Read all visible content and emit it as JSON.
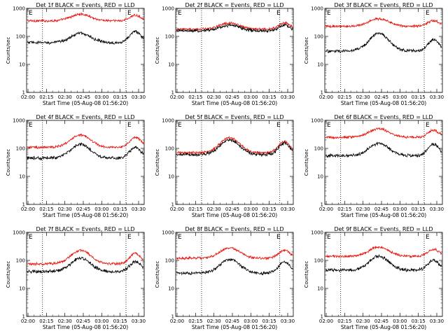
{
  "colors": {
    "events": "#000000",
    "lld": "#e8120c",
    "axis": "#000000",
    "background": "#ffffff"
  },
  "chart_data": [
    {
      "type": "line",
      "title": "Det 1f BLACK = Events, RED = LLD",
      "xlabel": "Start Time (05-Aug-08 01:56:20)",
      "ylabel": "Counts/sec",
      "yscale": "log",
      "ylim": [
        1,
        1000
      ],
      "y_ticks": [
        "1",
        "10",
        "100",
        "1000"
      ],
      "x_ticks": [
        "02:00",
        "02:15",
        "02:30",
        "02:45",
        "03:00",
        "03:15",
        "03:30"
      ],
      "markers": [
        "E",
        "E"
      ],
      "profile": {
        "events": {
          "base": 60,
          "peak1": 130,
          "peak2": 150
        },
        "lld": {
          "base": 360,
          "peak1": 620,
          "peak2": 560
        }
      }
    },
    {
      "type": "line",
      "title": "Det 2f BLACK = Events, RED = LLD",
      "xlabel": "Start Time (05-Aug-08 01:56:20)",
      "ylabel": "Counts/sec",
      "yscale": "log",
      "ylim": [
        1,
        1000
      ],
      "y_ticks": [
        "1",
        "10",
        "100",
        "1000"
      ],
      "x_ticks": [
        "02:00",
        "02:15",
        "02:30",
        "02:45",
        "03:00",
        "03:15",
        "03:30"
      ],
      "markers": [
        "E",
        "E"
      ],
      "profile": {
        "events": {
          "base": 160,
          "peak1": 250,
          "peak2": 250
        },
        "lld": {
          "base": 180,
          "peak1": 300,
          "peak2": 300
        }
      }
    },
    {
      "type": "line",
      "title": "Det 3f BLACK = Events, RED = LLD",
      "xlabel": "Start Time (05-Aug-08 01:56:20)",
      "ylabel": "Counts/sec",
      "yscale": "log",
      "ylim": [
        1,
        1000
      ],
      "y_ticks": [
        "1",
        "10",
        "100",
        "1000"
      ],
      "x_ticks": [
        "02:00",
        "02:15",
        "02:30",
        "02:45",
        "03:00",
        "03:15",
        "03:30"
      ],
      "markers": [
        "E",
        "E"
      ],
      "profile": {
        "events": {
          "base": 30,
          "peak1": 130,
          "peak2": 75
        },
        "lld": {
          "base": 230,
          "peak1": 430,
          "peak2": 360
        }
      }
    },
    {
      "type": "line",
      "title": "Det 4f BLACK = Events, RED = LLD",
      "xlabel": "Start Time (05-Aug-08 01:56:20)",
      "ylabel": "Counts/sec",
      "yscale": "log",
      "ylim": [
        1,
        1000
      ],
      "y_ticks": [
        "1",
        "10",
        "100",
        "1000"
      ],
      "x_ticks": [
        "02:00",
        "02:15",
        "02:30",
        "02:45",
        "03:00",
        "03:15",
        "03:30"
      ],
      "markers": [
        "E",
        "E"
      ],
      "profile": {
        "events": {
          "base": 45,
          "peak1": 140,
          "peak2": 110
        },
        "lld": {
          "base": 110,
          "peak1": 300,
          "peak2": 250
        }
      }
    },
    {
      "type": "line",
      "title": "Det 5f BLACK = Events, RED = LLD",
      "xlabel": "Start Time (05-Aug-08 01:56:20)",
      "ylabel": "Counts/sec",
      "yscale": "log",
      "ylim": [
        1,
        1000
      ],
      "y_ticks": [
        "1",
        "10",
        "100",
        "1000"
      ],
      "x_ticks": [
        "02:00",
        "02:15",
        "02:30",
        "02:45",
        "03:00",
        "03:15",
        "03:30"
      ],
      "markers": [
        "E",
        "E"
      ],
      "profile": {
        "events": {
          "base": 60,
          "peak1": 200,
          "peak2": 150
        },
        "lld": {
          "base": 70,
          "peak1": 240,
          "peak2": 180
        }
      }
    },
    {
      "type": "line",
      "title": "Det 6f BLACK = Events, RED = LLD",
      "xlabel": "Start Time (05-Aug-08 01:56:20)",
      "ylabel": "Counts/sec",
      "yscale": "log",
      "ylim": [
        1,
        1000
      ],
      "y_ticks": [
        "1",
        "10",
        "100",
        "1000"
      ],
      "x_ticks": [
        "02:00",
        "02:15",
        "02:30",
        "02:45",
        "03:00",
        "03:15",
        "03:30"
      ],
      "markers": [
        "E",
        "E"
      ],
      "profile": {
        "events": {
          "base": 55,
          "peak1": 150,
          "peak2": 140
        },
        "lld": {
          "base": 250,
          "peak1": 500,
          "peak2": 440
        }
      }
    },
    {
      "type": "line",
      "title": "Det 7f BLACK = Events, RED = LLD",
      "xlabel": "Start Time (05-Aug-08 01:56:20)",
      "ylabel": "Counts/sec",
      "yscale": "log",
      "ylim": [
        1,
        1000
      ],
      "y_ticks": [
        "1",
        "10",
        "100",
        "1000"
      ],
      "x_ticks": [
        "02:00",
        "02:15",
        "02:30",
        "02:45",
        "03:00",
        "03:15",
        "03:30"
      ],
      "markers": [
        "E",
        "E"
      ],
      "profile": {
        "events": {
          "base": 40,
          "peak1": 120,
          "peak2": 90
        },
        "lld": {
          "base": 75,
          "peak1": 230,
          "peak2": 180
        }
      }
    },
    {
      "type": "line",
      "title": "Det 8f BLACK = Events, RED = LLD",
      "xlabel": "Start Time (05-Aug-08 01:56:20)",
      "ylabel": "Counts/sec",
      "yscale": "log",
      "ylim": [
        1,
        1000
      ],
      "y_ticks": [
        "1",
        "10",
        "100",
        "1000"
      ],
      "x_ticks": [
        "02:00",
        "02:15",
        "02:30",
        "02:45",
        "03:00",
        "03:15",
        "03:30"
      ],
      "markers": [
        "E",
        "E"
      ],
      "profile": {
        "events": {
          "base": 35,
          "peak1": 110,
          "peak2": 90
        },
        "lld": {
          "base": 120,
          "peak1": 280,
          "peak2": 230
        }
      }
    },
    {
      "type": "line",
      "title": "Det 9f BLACK = Events, RED = LLD",
      "xlabel": "Start Time (05-Aug-08 01:56:20)",
      "ylabel": "Counts/sec",
      "yscale": "log",
      "ylim": [
        1,
        1000
      ],
      "y_ticks": [
        "1",
        "10",
        "100",
        "1000"
      ],
      "x_ticks": [
        "02:00",
        "02:15",
        "02:30",
        "02:45",
        "03:00",
        "03:15",
        "03:30"
      ],
      "markers": [
        "E",
        "E"
      ],
      "profile": {
        "events": {
          "base": 45,
          "peak1": 140,
          "peak2": 100
        },
        "lld": {
          "base": 140,
          "peak1": 300,
          "peak2": 250
        }
      }
    }
  ]
}
